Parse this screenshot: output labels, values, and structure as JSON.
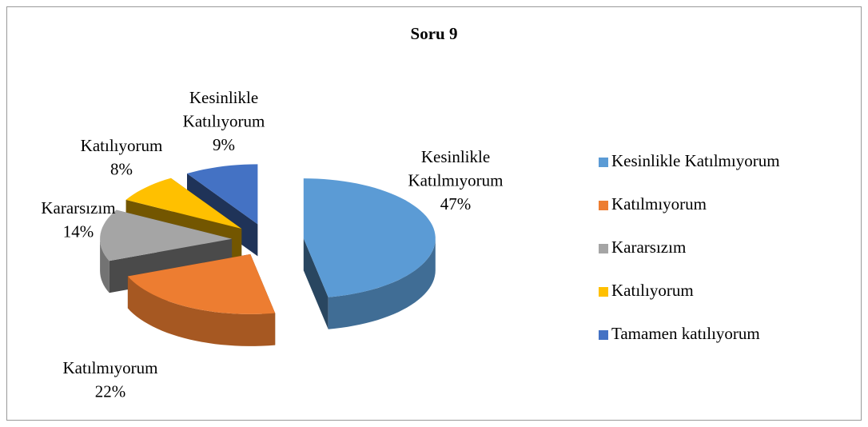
{
  "chart_data": {
    "type": "pie3d",
    "title": "Soru 9",
    "categories": [
      "Kesinlikle Katılmıyorum",
      "Katılmıyorum",
      "Kararsızım",
      "Katılıyorum",
      "Tamamen katılıyorum"
    ],
    "label_categories": [
      "Kesinlikle Katılmıyorum",
      "Katılmıyorum",
      "Kararsızım",
      "Katılıyorum",
      "Kesinlikle Katılıyorum"
    ],
    "values": [
      47,
      22,
      14,
      8,
      9
    ],
    "value_labels": [
      "47%",
      "22%",
      "14%",
      "8%",
      "9%"
    ],
    "colors": [
      "#5b9bd5",
      "#ed7d31",
      "#a5a5a5",
      "#ffc000",
      "#4472c4"
    ],
    "legend": "right"
  }
}
